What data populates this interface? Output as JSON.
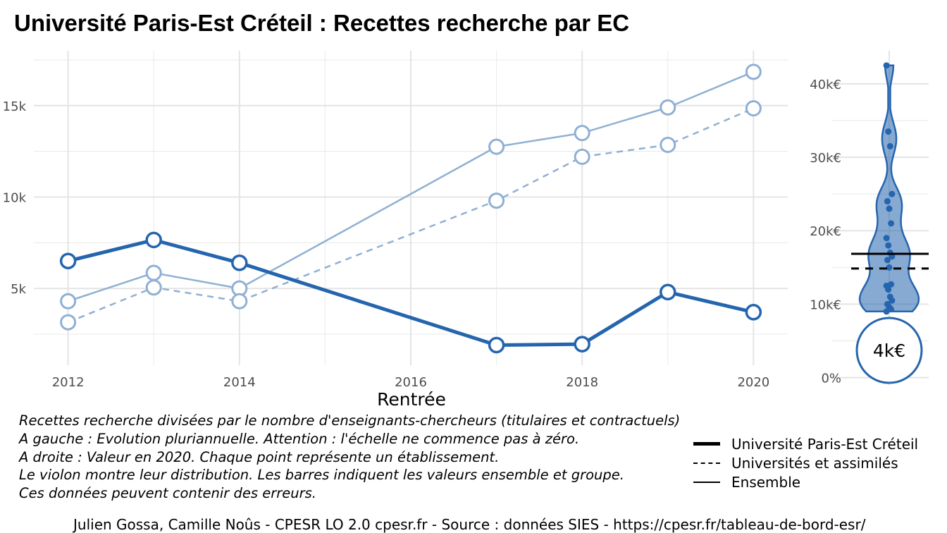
{
  "title": "Université Paris-Est Créteil  :  Recettes recherche par EC",
  "chart_data": [
    {
      "type": "line",
      "xlabel": "Rentrée",
      "ylabel": "",
      "x": [
        2012,
        2013,
        2014,
        2017,
        2018,
        2019,
        2020
      ],
      "x_ticks": [
        "2012",
        "2014",
        "2016",
        "2018",
        "2020"
      ],
      "y_ticks": [
        "5k",
        "10k",
        "15k"
      ],
      "series": [
        {
          "name": "Université Paris-Est Créteil",
          "style": "thick",
          "color": "#2565ae",
          "values": [
            6500,
            7650,
            6400,
            1900,
            1950,
            4800,
            3700
          ]
        },
        {
          "name": "Universités et assimilés",
          "style": "dashed",
          "color": "#8fb0d3",
          "values": [
            3150,
            5050,
            4300,
            9800,
            12200,
            12850,
            14850
          ]
        },
        {
          "name": "Ensemble",
          "style": "thin",
          "color": "#8fb0d3",
          "values": [
            4300,
            5850,
            5000,
            12750,
            13500,
            14900,
            16850
          ]
        }
      ],
      "grid": true
    },
    {
      "type": "violin",
      "x": [
        2020
      ],
      "y_ticks": [
        "0%",
        "10k€",
        "20k€",
        "30k€",
        "40k€"
      ],
      "points": [
        42500,
        33500,
        31500,
        25000,
        24000,
        23000,
        21000,
        19000,
        18000,
        17000,
        16500,
        16000,
        15000,
        12700,
        12500,
        12000,
        11000,
        10500,
        10000,
        9600,
        9300,
        9000
      ],
      "ensemble": 16850,
      "groupe": 14850,
      "value": 3700,
      "value_label": "4k€",
      "color": "#2565ae"
    }
  ],
  "notes": [
    "Recettes recherche divisées par le nombre d'enseignants-chercheurs (titulaires et contractuels)",
    "A gauche : Evolution pluriannuelle. Attention : l'échelle ne commence pas à zéro.",
    "A droite : Valeur en 2020. Chaque point représente un établissement.",
    "Le violon montre leur distribution. Les barres indiquent les valeurs ensemble et groupe.",
    "Ces données peuvent contenir des erreurs."
  ],
  "legend": [
    {
      "label": "Université Paris-Est Créteil"
    },
    {
      "label": "Universités et assimilés"
    },
    {
      "label": "Ensemble"
    }
  ],
  "footer": "Julien Gossa, Camille Noûs - CPESR LO 2.0 cpesr.fr - Source : données SIES - https://cpesr.fr/tableau-de-bord-esr/"
}
